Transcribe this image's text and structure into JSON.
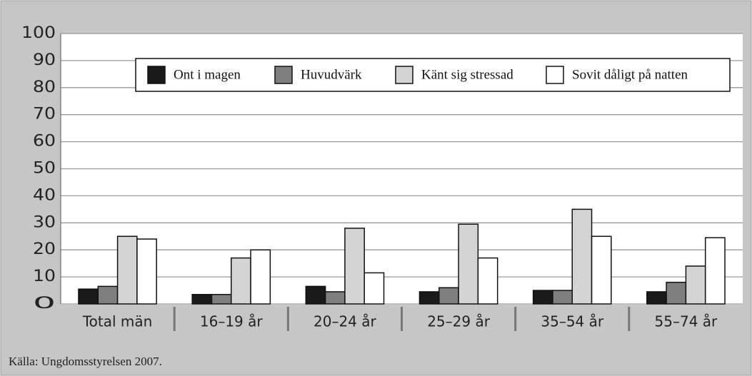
{
  "chart_data": {
    "type": "bar",
    "categories": [
      "Total män",
      "16–19 år",
      "20–24 år",
      "25–29 år",
      "35–54 år",
      "55–74 år"
    ],
    "series": [
      {
        "name": "Ont i magen",
        "color": "#1a1a1a",
        "values": [
          5.5,
          3.5,
          6.5,
          4.5,
          5,
          4.5
        ]
      },
      {
        "name": "Huvudvärk",
        "color": "#7f7f7f",
        "values": [
          6.5,
          3.5,
          4.5,
          6,
          5,
          8
        ]
      },
      {
        "name": "Känt sig stressad",
        "color": "#d4d4d4",
        "values": [
          25,
          17,
          28,
          29.5,
          35,
          14
        ]
      },
      {
        "name": "Sovit dåligt på natten",
        "color": "#ffffff",
        "values": [
          24,
          20,
          11.5,
          17,
          25,
          24.5
        ]
      }
    ],
    "ylim": [
      0,
      100
    ],
    "yticks": [
      0,
      10,
      20,
      30,
      40,
      50,
      60,
      70,
      80,
      90,
      100
    ],
    "grid": true,
    "legend": "top-right",
    "source": "Källa: Ungdomsstyrelsen 2007."
  }
}
